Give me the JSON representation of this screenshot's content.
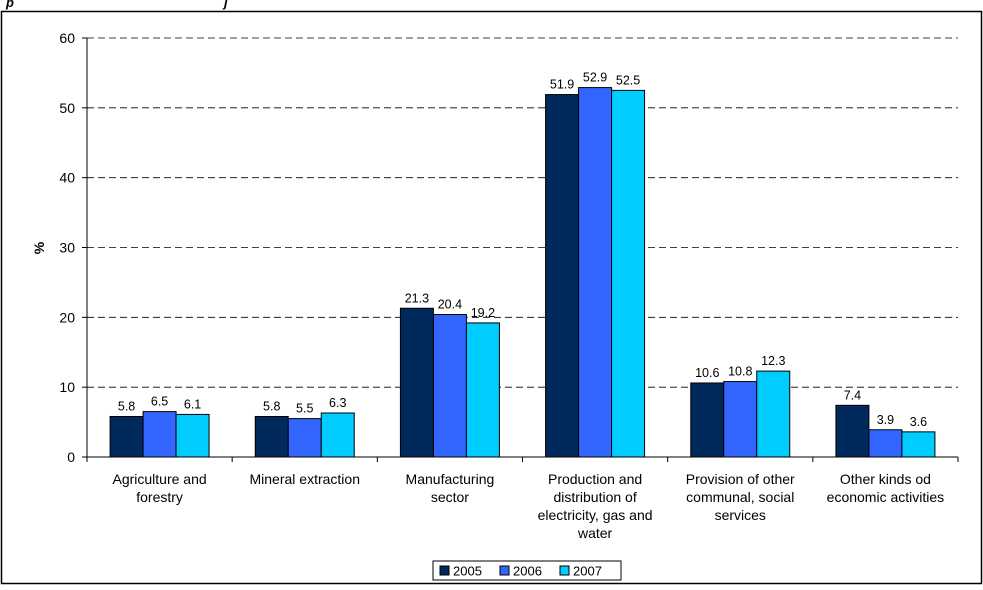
{
  "page": {
    "header_fragment": "p",
    "header_fragment2": "j"
  },
  "chart_data": {
    "type": "bar",
    "categories": [
      [
        "Agriculture and",
        "forestry"
      ],
      [
        "Mineral extraction"
      ],
      [
        "Manufacturing",
        "sector"
      ],
      [
        "Production and",
        "distribution of",
        "electricity, gas and",
        "water"
      ],
      [
        "Provision of other",
        "communal, social",
        "services"
      ],
      [
        "Other kinds od",
        "economic activities"
      ]
    ],
    "series": [
      {
        "name": "2005",
        "color": "#002a5c",
        "values": [
          5.8,
          5.8,
          21.3,
          51.9,
          10.6,
          7.4
        ]
      },
      {
        "name": "2006",
        "color": "#3366ff",
        "values": [
          6.5,
          5.5,
          20.4,
          52.9,
          10.8,
          3.9
        ]
      },
      {
        "name": "2007",
        "color": "#00ccff",
        "values": [
          6.1,
          6.3,
          19.2,
          52.5,
          12.3,
          3.6
        ]
      }
    ],
    "value_labels": [
      [
        "5.8",
        "5.8",
        "21.3",
        "51.9",
        "10.6",
        "7.4"
      ],
      [
        "6.5",
        "5.5",
        "20.4",
        "52.9",
        "10.8",
        "3.9"
      ],
      [
        "6.1",
        "6.3",
        "19.2",
        "52.5",
        "12.3",
        "3.6"
      ]
    ],
    "ylabel": "%",
    "ylim": [
      0,
      60
    ],
    "yticks": [
      "0",
      "10",
      "20",
      "30",
      "40",
      "50",
      "60"
    ],
    "grid": "horizontal dashed",
    "legend_position": "bottom-center"
  }
}
